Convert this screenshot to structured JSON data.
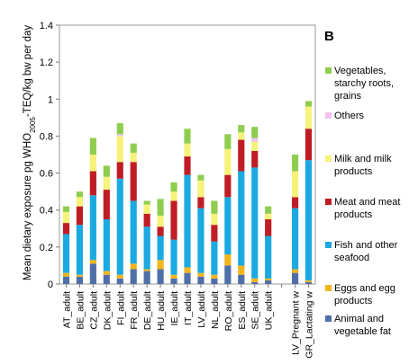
{
  "panel_label": "B",
  "chart_data": {
    "type": "bar",
    "stacked": true,
    "ylabel": "Mean dietary exposure pg WHO2005-TEQ/kg bw per day",
    "ylabel_parts": {
      "pre": "Mean dietary exposure pg WHO",
      "sub": "2005",
      "post": "-TEQ/kg bw per day"
    },
    "ylim": [
      0,
      1.4
    ],
    "yticks": [
      "0",
      "0.2",
      "0.4",
      "0.6",
      "0.8",
      "1",
      "1.2",
      "1.4"
    ],
    "grid": false,
    "legend_position": "right",
    "categories": [
      "AT_adult",
      "BE_adult",
      "CZ_adult",
      "DK_adult",
      "FI_adult",
      "FR_adult",
      "DE_adult",
      "HU_adult",
      "IE_adult",
      "IT_adult",
      "LV_adult",
      "NL_adult",
      "RO_adult",
      "ES_adult",
      "SE_adult",
      "UK_adult",
      "",
      "LV_Pregnant w",
      "GR_Lactating w"
    ],
    "series": [
      {
        "name": "Animal and vegetable fat",
        "color": "#4f6fa8",
        "values": [
          0.04,
          0.04,
          0.11,
          0.05,
          0.03,
          0.08,
          0.07,
          0.08,
          0.03,
          0.06,
          0.04,
          0.03,
          0.1,
          0.05,
          0.01,
          0.02,
          0,
          0.06,
          0.01
        ]
      },
      {
        "name": "Eggs and egg products",
        "color": "#f2b51c",
        "values": [
          0.02,
          0.01,
          0.02,
          0.02,
          0.02,
          0.03,
          0.01,
          0.05,
          0.02,
          0.03,
          0.02,
          0.02,
          0.06,
          0.05,
          0.02,
          0.01,
          0,
          0.02,
          0.01
        ]
      },
      {
        "name": "Fish and other seafood",
        "color": "#1ba9e1",
        "values": [
          0.21,
          0.27,
          0.35,
          0.28,
          0.52,
          0.34,
          0.23,
          0.13,
          0.19,
          0.5,
          0.35,
          0.18,
          0.31,
          0.51,
          0.6,
          0.23,
          0,
          0.33,
          0.65
        ]
      },
      {
        "name": "Meat and meat products",
        "color": "#c01c25",
        "values": [
          0.06,
          0.1,
          0.13,
          0.16,
          0.09,
          0.21,
          0.07,
          0.05,
          0.21,
          0.1,
          0.06,
          0.09,
          0.12,
          0.17,
          0.09,
          0.09,
          0,
          0.06,
          0.17
        ]
      },
      {
        "name": "Milk and milk products",
        "color": "#f6f27a",
        "values": [
          0.06,
          0.05,
          0.09,
          0.07,
          0.14,
          0.05,
          0.05,
          0.06,
          0.05,
          0.07,
          0.09,
          0.06,
          0.14,
          0.04,
          0.05,
          0.03,
          0,
          0.14,
          0.12
        ]
      },
      {
        "name": "Others",
        "color": "#f1c2ee",
        "values": [
          0,
          0,
          0,
          0,
          0.01,
          0,
          0,
          0,
          0,
          0,
          0,
          0,
          0,
          0,
          0.02,
          0,
          0,
          0,
          0
        ]
      },
      {
        "name": "Vegetables, starchy roots, grains",
        "color": "#8fcd4f",
        "values": [
          0.03,
          0.03,
          0.09,
          0.06,
          0.06,
          0.05,
          0.02,
          0.09,
          0.05,
          0.08,
          0.03,
          0.07,
          0.08,
          0.04,
          0.06,
          0.04,
          0,
          0.09,
          0.03
        ]
      }
    ]
  },
  "legend_order": [
    {
      "name": "Vegetables, starchy roots, grains",
      "label": "Vegetables, starchy roots, grains",
      "color": "#8fcd4f"
    },
    {
      "name": "Others",
      "label": "Others",
      "color": "#f1c2ee"
    },
    {
      "name": "Milk and milk products",
      "label": "Milk and milk products",
      "color": "#f6f27a"
    },
    {
      "name": "Meat and meat products",
      "label": "Meat and meat products",
      "color": "#c01c25"
    },
    {
      "name": "Fish and other seafood",
      "label": "Fish and other seafood",
      "color": "#1ba9e1"
    },
    {
      "name": "Eggs and egg products",
      "label": "Eggs and egg products",
      "color": "#f2b51c"
    },
    {
      "name": "Animal and vegetable fat",
      "label": "Animal and vegetable fat",
      "color": "#4f6fa8"
    }
  ]
}
